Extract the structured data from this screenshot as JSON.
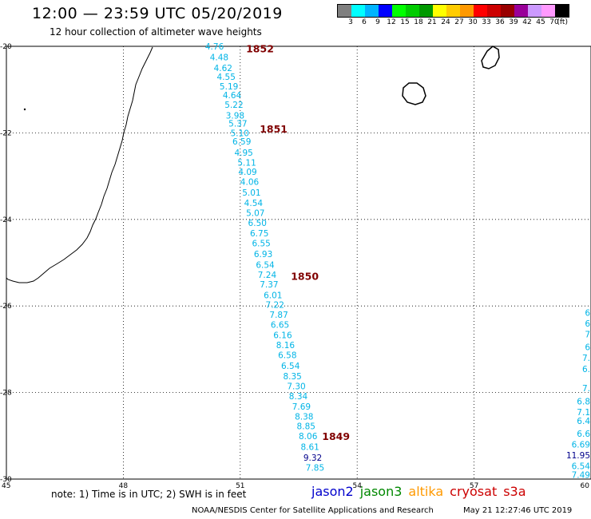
{
  "header": {
    "title": "12:00 — 23:59 UTC 05/20/2019",
    "subtitle": "12 hour collection of altimeter wave heights"
  },
  "legend": {
    "colors": [
      "#7f7f7f",
      "#00ffff",
      "#00b4ff",
      "#0000ff",
      "#00ff00",
      "#00cc00",
      "#009900",
      "#ffff00",
      "#ffcc00",
      "#ff9900",
      "#ff0000",
      "#cc0000",
      "#990000",
      "#990099",
      "#cc99ff",
      "#ff99ff",
      "#000000"
    ],
    "labels": [
      "3",
      "6",
      "9",
      "12",
      "15",
      "18",
      "21",
      "24",
      "27",
      "30",
      "33",
      "36",
      "39",
      "42",
      "45",
      "70"
    ],
    "unit": "(ft)"
  },
  "axes": {
    "lat_ticks": [
      "-20",
      "-22",
      "-24",
      "-26",
      "-28",
      "-30"
    ],
    "lon_ticks": [
      "45",
      "48",
      "51",
      "54",
      "57",
      "60"
    ],
    "lat_range": [
      -30,
      -20
    ],
    "lon_range": [
      45,
      60
    ]
  },
  "colors": {
    "wave_low": "#00b4e6",
    "wave_mid": "#00008b",
    "pass_label": "#800000"
  },
  "pass_labels": [
    {
      "text": "1852",
      "lon": 51.15,
      "lat": -20.05
    },
    {
      "text": "1851",
      "lon": 51.5,
      "lat": -21.9
    },
    {
      "text": "1850",
      "lon": 52.3,
      "lat": -25.3
    },
    {
      "text": "1849",
      "lon": 53.1,
      "lat": -29.0
    }
  ],
  "track_values": [
    {
      "v": "4.76",
      "lon": 50.1,
      "lat": -20.0
    },
    {
      "v": "4.48",
      "lon": 50.22,
      "lat": -20.25
    },
    {
      "v": "4.62",
      "lon": 50.32,
      "lat": -20.5
    },
    {
      "v": "4.55",
      "lon": 50.4,
      "lat": -20.7
    },
    {
      "v": "5.19",
      "lon": 50.47,
      "lat": -20.92
    },
    {
      "v": "4.64",
      "lon": 50.55,
      "lat": -21.13
    },
    {
      "v": "5.22",
      "lon": 50.6,
      "lat": -21.35
    },
    {
      "v": "3.98",
      "lon": 50.63,
      "lat": -21.6
    },
    {
      "v": "5.37",
      "lon": 50.7,
      "lat": -21.78
    },
    {
      "v": "5.10",
      "lon": 50.75,
      "lat": -22.0
    },
    {
      "v": "6.59",
      "lon": 50.8,
      "lat": -22.2
    },
    {
      "v": "4.95",
      "lon": 50.85,
      "lat": -22.45
    },
    {
      "v": "5.11",
      "lon": 50.93,
      "lat": -22.68
    },
    {
      "v": "4.09",
      "lon": 50.95,
      "lat": -22.9
    },
    {
      "v": "4.06",
      "lon": 51.0,
      "lat": -23.13
    },
    {
      "v": "5.01",
      "lon": 51.05,
      "lat": -23.38
    },
    {
      "v": "4.54",
      "lon": 51.1,
      "lat": -23.62
    },
    {
      "v": "5.07",
      "lon": 51.15,
      "lat": -23.85
    },
    {
      "v": "6.50",
      "lon": 51.2,
      "lat": -24.08
    },
    {
      "v": "6.75",
      "lon": 51.25,
      "lat": -24.32
    },
    {
      "v": "6.55",
      "lon": 51.3,
      "lat": -24.55
    },
    {
      "v": "6.93",
      "lon": 51.35,
      "lat": -24.8
    },
    {
      "v": "6.54",
      "lon": 51.4,
      "lat": -25.05
    },
    {
      "v": "7.24",
      "lon": 51.45,
      "lat": -25.28
    },
    {
      "v": "7.37",
      "lon": 51.5,
      "lat": -25.5
    },
    {
      "v": "6.01",
      "lon": 51.6,
      "lat": -25.75
    },
    {
      "v": "7.22",
      "lon": 51.65,
      "lat": -25.97
    },
    {
      "v": "7.87",
      "lon": 51.75,
      "lat": -26.2
    },
    {
      "v": "6.65",
      "lon": 51.78,
      "lat": -26.43
    },
    {
      "v": "6.16",
      "lon": 51.85,
      "lat": -26.67
    },
    {
      "v": "8.16",
      "lon": 51.92,
      "lat": -26.9
    },
    {
      "v": "6.58",
      "lon": 51.97,
      "lat": -27.13
    },
    {
      "v": "6.54",
      "lon": 52.05,
      "lat": -27.38
    },
    {
      "v": "8.35",
      "lon": 52.1,
      "lat": -27.62
    },
    {
      "v": "7.30",
      "lon": 52.2,
      "lat": -27.85
    },
    {
      "v": "8.34",
      "lon": 52.25,
      "lat": -28.08
    },
    {
      "v": "7.69",
      "lon": 52.33,
      "lat": -28.32
    },
    {
      "v": "8.38",
      "lon": 52.4,
      "lat": -28.55
    },
    {
      "v": "8.85",
      "lon": 52.45,
      "lat": -28.77
    },
    {
      "v": "8.06",
      "lon": 52.5,
      "lat": -29.0
    },
    {
      "v": "8.61",
      "lon": 52.55,
      "lat": -29.25
    },
    {
      "v": "9.32",
      "lon": 52.62,
      "lat": -29.5,
      "c": "mid"
    },
    {
      "v": "7.85",
      "lon": 52.68,
      "lat": -29.73
    }
  ],
  "edge_values": [
    {
      "v": "6",
      "lat": -26.15
    },
    {
      "v": "6",
      "lat": -26.4
    },
    {
      "v": "7",
      "lat": -26.65
    },
    {
      "v": "6",
      "lat": -26.95
    },
    {
      "v": "7.",
      "lat": -27.2
    },
    {
      "v": "6.",
      "lat": -27.45
    },
    {
      "v": "7.",
      "lat": -27.9
    },
    {
      "v": "6.8",
      "lat": -28.2
    },
    {
      "v": "7.1",
      "lat": -28.45
    },
    {
      "v": "6.4",
      "lat": -28.65
    },
    {
      "v": "6.6",
      "lat": -28.95
    },
    {
      "v": "6.69",
      "lat": -29.2
    },
    {
      "v": "11.95",
      "lat": -29.45,
      "c": "mid"
    },
    {
      "v": "6.54",
      "lat": -29.7
    },
    {
      "v": "7.49",
      "lat": -29.9
    }
  ],
  "footer": {
    "note": "note:  1) Time is in UTC;  2) SWH is in feet",
    "satellites": [
      {
        "name": "jason2",
        "color": "#0000cc"
      },
      {
        "name": "jason3",
        "color": "#008800"
      },
      {
        "name": "altika",
        "color": "#ff9900"
      },
      {
        "name": "cryosat",
        "color": "#cc0000"
      },
      {
        "name": "s3a",
        "color": "#cc0000"
      }
    ],
    "credit": "NOAA/NESDIS Center for Satellite Applications and Research",
    "timestamp": "May 21 12:27:46 UTC 2019"
  }
}
